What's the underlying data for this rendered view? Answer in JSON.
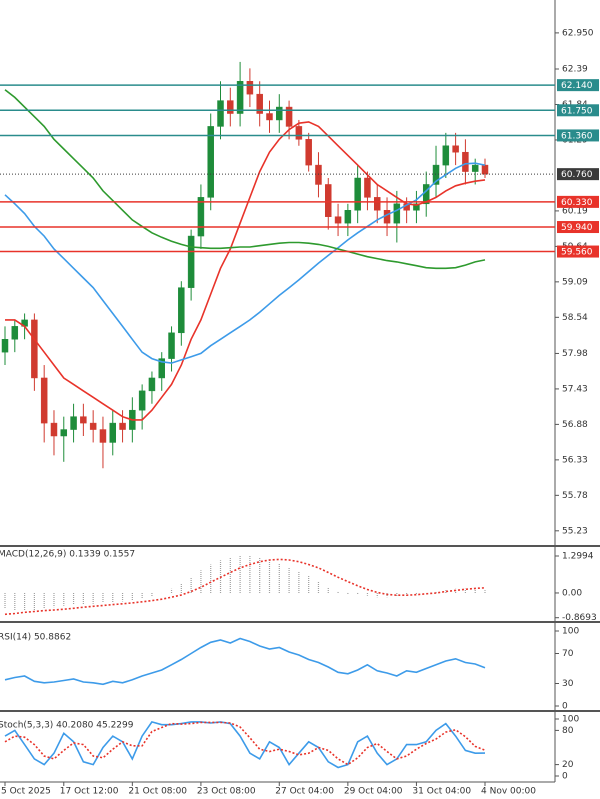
{
  "chart_data": [
    {
      "type": "candlestick",
      "categories": [
        "5 Oct 2025",
        null,
        null,
        null,
        null,
        null,
        "17 Oct 12:00",
        null,
        null,
        null,
        null,
        null,
        null,
        "21 Oct 08:00",
        null,
        null,
        null,
        null,
        null,
        null,
        "23 Oct 08:00",
        null,
        null,
        null,
        null,
        null,
        null,
        null,
        "27 Oct 04:00",
        null,
        null,
        null,
        null,
        null,
        null,
        "29 Oct 04:00",
        null,
        null,
        null,
        null,
        null,
        null,
        "31 Oct 04:00",
        null,
        null,
        null,
        null,
        null,
        null,
        "4 Nov 00:00"
      ],
      "open": [
        58.0,
        58.2,
        58.4,
        58.5,
        57.6,
        56.9,
        56.7,
        56.8,
        57.0,
        56.9,
        56.8,
        56.6,
        56.9,
        56.8,
        57.1,
        57.4,
        57.6,
        57.9,
        58.3,
        59.0,
        59.8,
        60.4,
        61.5,
        61.9,
        61.7,
        62.2,
        62.0,
        61.7,
        61.6,
        61.8,
        61.5,
        61.3,
        60.9,
        60.6,
        60.1,
        60.0,
        60.2,
        60.7,
        60.4,
        60.2,
        60.0,
        60.3,
        60.2,
        60.3,
        60.6,
        60.9,
        61.2,
        61.1,
        60.8,
        60.9
      ],
      "high": [
        58.4,
        58.5,
        58.6,
        58.6,
        57.8,
        57.1,
        57.0,
        57.2,
        57.2,
        57.1,
        57.0,
        57.1,
        57.1,
        57.3,
        57.5,
        57.7,
        58.0,
        58.4,
        59.1,
        59.9,
        60.6,
        61.7,
        62.2,
        62.1,
        62.5,
        62.4,
        62.2,
        61.9,
        62.0,
        61.9,
        61.6,
        61.4,
        61.1,
        60.7,
        60.3,
        60.3,
        60.9,
        60.8,
        60.6,
        60.4,
        60.5,
        60.4,
        60.5,
        60.8,
        61.2,
        61.4,
        61.4,
        61.3,
        61.0,
        61.0
      ],
      "low": [
        57.8,
        58.0,
        58.2,
        57.4,
        56.6,
        56.4,
        56.3,
        56.6,
        56.7,
        56.6,
        56.2,
        56.4,
        56.6,
        56.6,
        56.8,
        57.2,
        57.4,
        57.7,
        58.1,
        58.8,
        59.6,
        60.2,
        61.3,
        61.5,
        61.5,
        61.8,
        61.5,
        61.4,
        61.4,
        61.3,
        61.2,
        60.8,
        60.4,
        59.9,
        59.8,
        59.8,
        60.0,
        60.2,
        60.0,
        59.8,
        59.7,
        60.0,
        60.0,
        60.1,
        60.4,
        60.7,
        60.9,
        60.6,
        60.6,
        60.7
      ],
      "close": [
        58.2,
        58.4,
        58.5,
        57.6,
        56.9,
        56.7,
        56.8,
        57.0,
        56.9,
        56.8,
        56.6,
        56.9,
        56.8,
        57.1,
        57.4,
        57.6,
        57.9,
        58.3,
        59.0,
        59.8,
        60.4,
        61.5,
        61.9,
        61.7,
        62.2,
        62.0,
        61.7,
        61.6,
        61.8,
        61.5,
        61.3,
        60.9,
        60.6,
        60.1,
        60.0,
        60.2,
        60.7,
        60.4,
        60.2,
        60.0,
        60.3,
        60.2,
        60.3,
        60.6,
        60.9,
        61.2,
        61.1,
        60.8,
        60.9,
        60.76
      ],
      "up_color": "#1e8c3a",
      "down_color": "#d03a2f",
      "overlays": [
        {
          "color": "#e8332a",
          "values": [
            58.5,
            58.5,
            58.4,
            58.2,
            58.0,
            57.8,
            57.6,
            57.5,
            57.4,
            57.3,
            57.2,
            57.1,
            57.0,
            56.95,
            56.95,
            57.1,
            57.3,
            57.5,
            57.8,
            58.2,
            58.5,
            58.9,
            59.3,
            59.6,
            60.0,
            60.4,
            60.8,
            61.1,
            61.3,
            61.45,
            61.55,
            61.57,
            61.5,
            61.35,
            61.2,
            61.05,
            60.9,
            60.75,
            60.6,
            60.5,
            60.4,
            60.3,
            60.28,
            60.33,
            60.4,
            60.5,
            60.58,
            60.62,
            60.65,
            60.67
          ]
        },
        {
          "color": "#3d9be9",
          "values": [
            60.44,
            60.3,
            60.15,
            59.95,
            59.8,
            59.6,
            59.45,
            59.3,
            59.15,
            59.0,
            58.8,
            58.6,
            58.4,
            58.2,
            58.0,
            57.9,
            57.85,
            57.83,
            57.88,
            57.93,
            57.98,
            58.1,
            58.2,
            58.3,
            58.4,
            58.5,
            58.62,
            58.75,
            58.88,
            59.0,
            59.12,
            59.25,
            59.38,
            59.5,
            59.62,
            59.74,
            59.85,
            59.95,
            60.05,
            60.13,
            60.2,
            60.28,
            60.36,
            60.5,
            60.65,
            60.75,
            60.85,
            60.92,
            60.93,
            60.9
          ]
        },
        {
          "color": "#2e9a2e",
          "values": [
            62.07,
            61.95,
            61.8,
            61.65,
            61.5,
            61.3,
            61.15,
            61.0,
            60.85,
            60.7,
            60.5,
            60.35,
            60.2,
            60.05,
            59.95,
            59.85,
            59.78,
            59.72,
            59.67,
            59.63,
            59.62,
            59.61,
            59.61,
            59.62,
            59.63,
            59.63,
            59.65,
            59.67,
            59.69,
            59.7,
            59.7,
            59.69,
            59.67,
            59.64,
            59.6,
            59.56,
            59.52,
            59.48,
            59.45,
            59.42,
            59.4,
            59.37,
            59.34,
            59.31,
            59.3,
            59.3,
            59.31,
            59.35,
            59.4,
            59.43
          ]
        }
      ],
      "levels": [
        {
          "value": 62.14,
          "label": "62.140",
          "color": "#2a8c8c"
        },
        {
          "value": 61.75,
          "label": "61.750",
          "color": "#2a8c8c"
        },
        {
          "value": 61.36,
          "label": "61.360",
          "color": "#2a8c8c"
        },
        {
          "value": 60.76,
          "label": "60.760",
          "color": "#3a3a3a",
          "dotted": true
        },
        {
          "value": 60.33,
          "label": "60.330",
          "color": "#e8332a"
        },
        {
          "value": 59.94,
          "label": "59.940",
          "color": "#e8332a"
        },
        {
          "value": 59.56,
          "label": "59.560",
          "color": "#e8332a"
        }
      ],
      "ylim": [
        55.01,
        63.46
      ],
      "yticks": [
        {
          "value": 62.95,
          "label": "62.950"
        },
        62.39,
        61.84,
        61.29,
        60.19,
        59.64,
        59.09,
        58.54,
        57.98,
        57.43,
        56.88,
        56.33,
        55.78,
        55.23
      ]
    },
    {
      "type": "macd",
      "title": "MACD(12,26,9) 0.1339 0.1557",
      "ylim": [
        -0.95,
        1.58
      ],
      "yticks": [
        1.2994,
        {
          "value": 0,
          "label": "0.00"
        },
        -0.8693
      ],
      "histogram": {
        "color": "#a0a0a0",
        "values": [
          -0.55,
          -0.6,
          -0.62,
          -0.6,
          -0.55,
          -0.5,
          -0.45,
          -0.42,
          -0.4,
          -0.38,
          -0.35,
          -0.33,
          -0.3,
          -0.25,
          -0.2,
          -0.12,
          0.0,
          0.15,
          0.35,
          0.55,
          0.8,
          1.0,
          1.15,
          1.25,
          1.3,
          1.3,
          1.25,
          1.15,
          1.05,
          0.9,
          0.75,
          0.6,
          0.4,
          0.2,
          0.05,
          -0.05,
          -0.05,
          -0.1,
          -0.15,
          -0.15,
          -0.12,
          -0.1,
          -0.05,
          0.0,
          0.05,
          0.1,
          0.15,
          0.15,
          0.12,
          0.1
        ]
      },
      "series": [
        {
          "color": "#e8332a",
          "dash": true,
          "values": [
            -0.75,
            -0.72,
            -0.68,
            -0.65,
            -0.62,
            -0.6,
            -0.57,
            -0.54,
            -0.5,
            -0.47,
            -0.44,
            -0.41,
            -0.38,
            -0.35,
            -0.31,
            -0.27,
            -0.22,
            -0.15,
            -0.07,
            0.05,
            0.2,
            0.38,
            0.55,
            0.72,
            0.88,
            1.0,
            1.1,
            1.16,
            1.18,
            1.16,
            1.1,
            1.0,
            0.88,
            0.72,
            0.55,
            0.4,
            0.25,
            0.12,
            0.02,
            -0.05,
            -0.08,
            -0.08,
            -0.06,
            -0.03,
            0.0,
            0.05,
            0.09,
            0.13,
            0.16,
            0.18
          ]
        }
      ]
    },
    {
      "type": "line",
      "title": "RSI(14) 50.8862",
      "ylim": [
        0,
        100
      ],
      "yticks": [
        100,
        70,
        30,
        0
      ],
      "series": [
        {
          "color": "#3d9be9",
          "values": [
            35,
            38,
            40,
            33,
            31,
            32,
            34,
            36,
            32,
            31,
            29,
            33,
            31,
            35,
            40,
            44,
            48,
            55,
            62,
            70,
            78,
            85,
            88,
            84,
            90,
            86,
            80,
            76,
            78,
            72,
            68,
            62,
            58,
            52,
            45,
            43,
            48,
            55,
            47,
            44,
            40,
            47,
            45,
            50,
            55,
            60,
            63,
            58,
            56,
            50.9
          ]
        }
      ]
    },
    {
      "type": "line",
      "title": "Stoch(5,3,3) 40.2080 45.2299",
      "ylim": [
        0,
        100
      ],
      "yticks": [
        100,
        80,
        20,
        0
      ],
      "series": [
        {
          "color": "#3d9be9",
          "values": [
            70,
            80,
            55,
            30,
            20,
            40,
            75,
            60,
            25,
            20,
            50,
            70,
            60,
            30,
            70,
            95,
            90,
            90,
            92,
            95,
            95,
            93,
            95,
            92,
            70,
            40,
            30,
            60,
            50,
            20,
            40,
            60,
            50,
            25,
            15,
            20,
            60,
            70,
            40,
            20,
            30,
            55,
            55,
            60,
            80,
            92,
            70,
            45,
            40,
            40.2
          ]
        },
        {
          "color": "#e8332a",
          "dash": true,
          "values": [
            60,
            70,
            68,
            55,
            35,
            30,
            45,
            58,
            55,
            35,
            32,
            47,
            60,
            53,
            53,
            78,
            85,
            92,
            91,
            92,
            94,
            94,
            94,
            93,
            86,
            67,
            47,
            43,
            47,
            43,
            37,
            40,
            50,
            45,
            30,
            20,
            32,
            50,
            57,
            43,
            30,
            35,
            47,
            57,
            65,
            77,
            81,
            69,
            52,
            45.2
          ]
        }
      ]
    }
  ]
}
